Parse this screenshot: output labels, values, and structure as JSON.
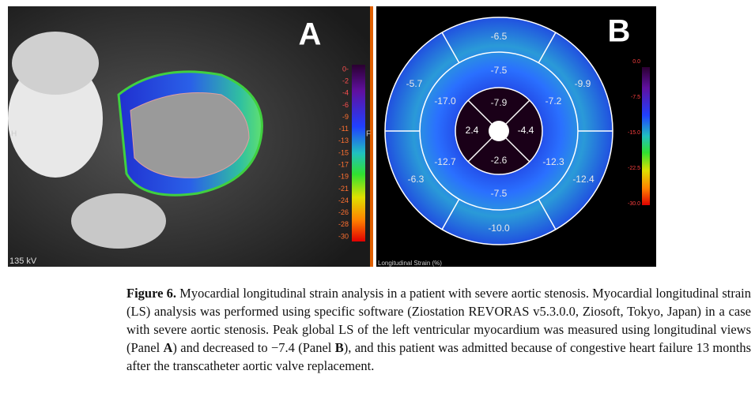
{
  "panel_a": {
    "label": "A",
    "colorbar_labels": [
      "0-",
      "-2",
      "-4",
      "-6",
      "-9",
      "-11",
      "-13",
      "-15",
      "-17",
      "-19",
      "-21",
      "-24",
      "-26",
      "-28",
      "-30"
    ],
    "side_left": "H",
    "side_right": "F",
    "footer": "135 kV"
  },
  "panel_b": {
    "label": "B",
    "segments": [
      "-6.5",
      "-7.5",
      "-5.7",
      "-9.9",
      "-17.0",
      "-7.9",
      "-7.2",
      "2.4",
      "-4.4",
      "-12.7",
      "-2.6",
      "-12.3",
      "-6.3",
      "-12.4",
      "-7.5",
      "-10.0"
    ],
    "colorbar_labels": [
      "0.0",
      "-7.5",
      "-15.0",
      "-22.5",
      "-30.0"
    ],
    "axis_title": "Longitudinal Strain (%)"
  },
  "caption": {
    "label": "Figure 6.",
    "parts": [
      " Myocardial longitudinal strain analysis in a patient with severe aortic stenosis. Myocardial longitudinal strain (LS) analysis was performed using specific software (Ziostation REVORAS v5.3.0.0, Ziosoft, Tokyo, Japan) in a case with severe aortic stenosis. Peak global LS of the left ventricular myocardium was measured using longitudinal views (Panel ",
      "A",
      ") and decreased to −7.4 (Panel ",
      "B",
      "), and this patient was admitted because of congestive heart failure 13 months after the transcatheter aortic valve replacement."
    ]
  }
}
